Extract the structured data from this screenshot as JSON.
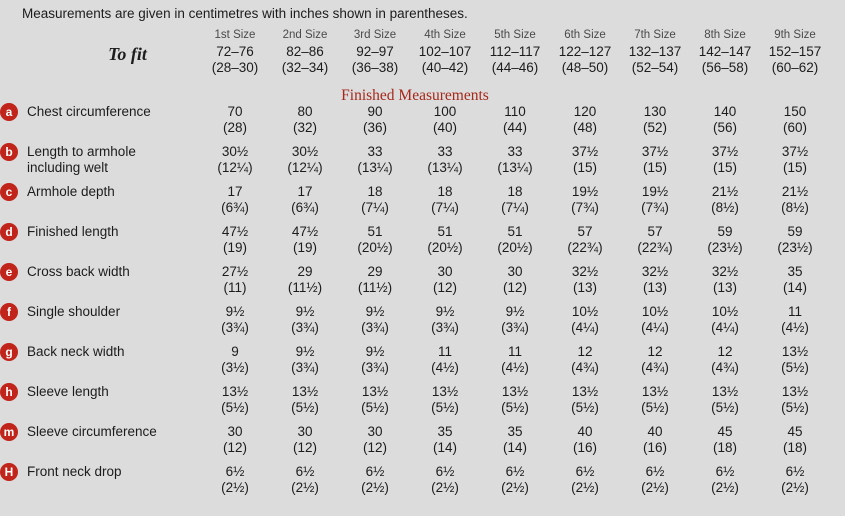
{
  "note": "Measurements are given in centimetres with inches shown in parentheses.",
  "colors": {
    "background": "#dcdcdc",
    "badge_red": "#c0241a",
    "heading_red": "#a6281a",
    "size_header_gray": "#4a4a4a"
  },
  "table": {
    "size_headers": [
      "1st Size",
      "2nd Size",
      "3rd Size",
      "4th Size",
      "5th Size",
      "6th Size",
      "7th Size",
      "8th Size",
      "9th Size"
    ],
    "to_fit": {
      "label": "To fit",
      "cm": [
        "72–76",
        "82–86",
        "92–97",
        "102–107",
        "112–117",
        "122–127",
        "132–137",
        "142–147",
        "152–157"
      ],
      "inches": [
        "(28–30)",
        "(32–34)",
        "(36–38)",
        "(40–42)",
        "(44–46)",
        "(48–50)",
        "(52–54)",
        "(56–58)",
        "(60–62)"
      ]
    },
    "section_heading": "Finished Measurements",
    "rows": [
      {
        "key": "a",
        "label": "Chest circumference",
        "cm": [
          "70",
          "80",
          "90",
          "100",
          "110",
          "120",
          "130",
          "140",
          "150"
        ],
        "inches": [
          "(28)",
          "(32)",
          "(36)",
          "(40)",
          "(44)",
          "(48)",
          "(52)",
          "(56)",
          "(60)"
        ]
      },
      {
        "key": "b",
        "label": "Length to armhole including welt",
        "cm": [
          "30½",
          "30½",
          "33",
          "33",
          "33",
          "37½",
          "37½",
          "37½",
          "37½"
        ],
        "inches": [
          "(12¼)",
          "(12¼)",
          "(13¼)",
          "(13¼)",
          "(13¼)",
          "(15)",
          "(15)",
          "(15)",
          "(15)"
        ]
      },
      {
        "key": "c",
        "label": "Armhole depth",
        "cm": [
          "17",
          "17",
          "18",
          "18",
          "18",
          "19½",
          "19½",
          "21½",
          "21½"
        ],
        "inches": [
          "(6¾)",
          "(6¾)",
          "(7¼)",
          "(7¼)",
          "(7¼)",
          "(7¾)",
          "(7¾)",
          "(8½)",
          "(8½)"
        ]
      },
      {
        "key": "d",
        "label": "Finished length",
        "cm": [
          "47½",
          "47½",
          "51",
          "51",
          "51",
          "57",
          "57",
          "59",
          "59"
        ],
        "inches": [
          "(19)",
          "(19)",
          "(20½)",
          "(20½)",
          "(20½)",
          "(22¾)",
          "(22¾)",
          "(23½)",
          "(23½)"
        ]
      },
      {
        "key": "e",
        "label": "Cross back width",
        "cm": [
          "27½",
          "29",
          "29",
          "30",
          "30",
          "32½",
          "32½",
          "32½",
          "35"
        ],
        "inches": [
          "(11)",
          "(11½)",
          "(11½)",
          "(12)",
          "(12)",
          "(13)",
          "(13)",
          "(13)",
          "(14)"
        ]
      },
      {
        "key": "f",
        "label": "Single shoulder",
        "cm": [
          "9½",
          "9½",
          "9½",
          "9½",
          "9½",
          "10½",
          "10½",
          "10½",
          "11"
        ],
        "inches": [
          "(3¾)",
          "(3¾)",
          "(3¾)",
          "(3¾)",
          "(3¾)",
          "(4¼)",
          "(4¼)",
          "(4¼)",
          "(4½)"
        ]
      },
      {
        "key": "g",
        "label": "Back neck width",
        "cm": [
          "9",
          "9½",
          "9½",
          "11",
          "11",
          "12",
          "12",
          "12",
          "13½"
        ],
        "inches": [
          "(3½)",
          "(3¾)",
          "(3¾)",
          "(4½)",
          "(4½)",
          "(4¾)",
          "(4¾)",
          "(4¾)",
          "(5½)"
        ]
      },
      {
        "key": "h",
        "label": "Sleeve length",
        "cm": [
          "13½",
          "13½",
          "13½",
          "13½",
          "13½",
          "13½",
          "13½",
          "13½",
          "13½"
        ],
        "inches": [
          "(5½)",
          "(5½)",
          "(5½)",
          "(5½)",
          "(5½)",
          "(5½)",
          "(5½)",
          "(5½)",
          "(5½)"
        ]
      },
      {
        "key": "m",
        "label": "Sleeve circumference",
        "cm": [
          "30",
          "30",
          "30",
          "35",
          "35",
          "40",
          "40",
          "45",
          "45"
        ],
        "inches": [
          "(12)",
          "(12)",
          "(12)",
          "(14)",
          "(14)",
          "(16)",
          "(16)",
          "(18)",
          "(18)"
        ]
      },
      {
        "key": "H",
        "label": "Front neck drop",
        "cm": [
          "6½",
          "6½",
          "6½",
          "6½",
          "6½",
          "6½",
          "6½",
          "6½",
          "6½"
        ],
        "inches": [
          "(2½)",
          "(2½)",
          "(2½)",
          "(2½)",
          "(2½)",
          "(2½)",
          "(2½)",
          "(2½)",
          "(2½)"
        ]
      }
    ]
  }
}
